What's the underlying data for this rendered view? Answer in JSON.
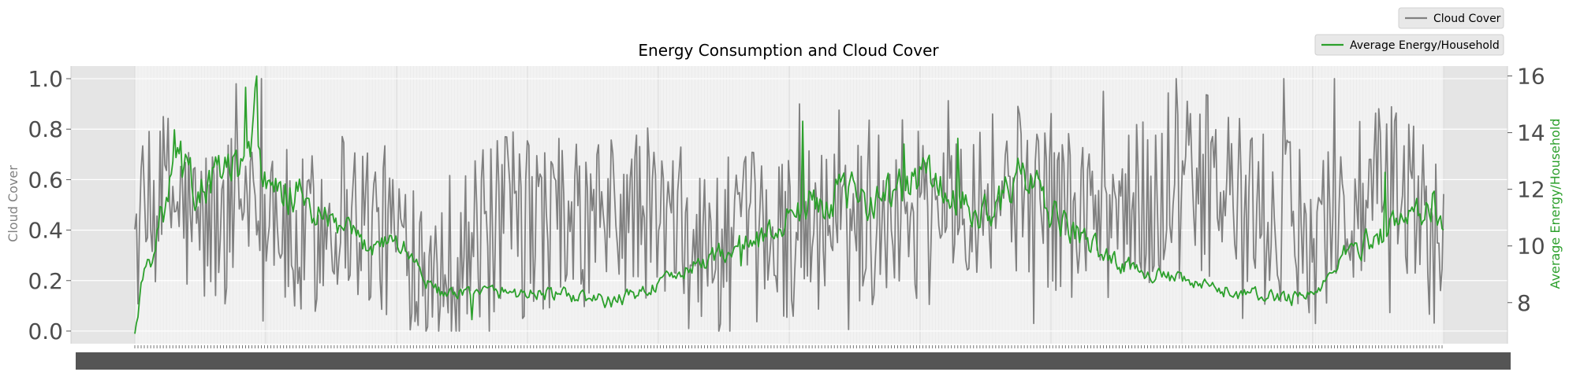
{
  "chart_data": {
    "type": "line",
    "title": "Energy Consumption and Cloud Cover",
    "xlabel": "",
    "y1label": "Cloud Cover",
    "y2label": "Average Energy/Household",
    "y1lim": [
      -0.05,
      1.05
    ],
    "y2lim": [
      6.55,
      16.35
    ],
    "y1ticks": [
      "0.0",
      "0.2",
      "0.4",
      "0.6",
      "0.8",
      "1.0"
    ],
    "y2ticks": [
      "8",
      "10",
      "12",
      "14",
      "16"
    ],
    "n_points": 828,
    "grid": true,
    "legend_position": "top-right",
    "series": [
      {
        "name": "Cloud Cover",
        "axis": "left",
        "color": "#808080",
        "keyframes": [
          [
            0,
            0.36
          ],
          [
            20,
            0.55
          ],
          [
            40,
            0.4
          ],
          [
            60,
            0.45
          ],
          [
            80,
            0.68
          ],
          [
            100,
            0.3
          ],
          [
            130,
            0.5
          ],
          [
            160,
            0.38
          ],
          [
            200,
            0.3
          ],
          [
            240,
            0.45
          ],
          [
            280,
            0.4
          ],
          [
            320,
            0.48
          ],
          [
            360,
            0.32
          ],
          [
            400,
            0.38
          ],
          [
            440,
            0.42
          ],
          [
            480,
            0.5
          ],
          [
            520,
            0.58
          ],
          [
            560,
            0.56
          ],
          [
            600,
            0.46
          ],
          [
            640,
            0.5
          ],
          [
            680,
            0.6
          ],
          [
            720,
            0.4
          ],
          [
            760,
            0.44
          ],
          [
            800,
            0.58
          ],
          [
            827,
            0.32
          ]
        ],
        "spikes_hi": [
          [
            64,
            0.98
          ],
          [
            80,
            1.0
          ],
          [
            420,
            0.9
          ],
          [
            612,
            0.95
          ],
          [
            658,
            1.0
          ],
          [
            726,
            1.0
          ],
          [
            758,
            1.0
          ]
        ],
        "spikes_lo": [
          [
            81,
            0.04
          ],
          [
            175,
            0.07
          ],
          [
            192,
            0.0
          ],
          [
            245,
            0.05
          ],
          [
            568,
            0.03
          ],
          [
            700,
            0.05
          ],
          [
            746,
            0.03
          ]
        ]
      },
      {
        "name": "Average Energy/Household",
        "axis": "right",
        "color": "#2ca02c",
        "keyframes": [
          [
            0,
            6.9
          ],
          [
            3,
            8.6
          ],
          [
            6,
            9.3
          ],
          [
            10,
            9.6
          ],
          [
            14,
            10.8
          ],
          [
            20,
            11.6
          ],
          [
            26,
            13.0
          ],
          [
            32,
            12.5
          ],
          [
            40,
            11.8
          ],
          [
            50,
            12.4
          ],
          [
            60,
            12.8
          ],
          [
            70,
            12.4
          ],
          [
            75,
            15.9
          ],
          [
            80,
            12.0
          ],
          [
            90,
            11.7
          ],
          [
            100,
            11.9
          ],
          [
            115,
            11.0
          ],
          [
            130,
            10.6
          ],
          [
            145,
            10.0
          ],
          [
            160,
            10.3
          ],
          [
            175,
            9.6
          ],
          [
            185,
            8.6
          ],
          [
            200,
            8.2
          ],
          [
            220,
            8.4
          ],
          [
            260,
            8.3
          ],
          [
            280,
            8.2
          ],
          [
            300,
            8.0
          ],
          [
            320,
            8.4
          ],
          [
            340,
            8.9
          ],
          [
            360,
            9.5
          ],
          [
            380,
            10.0
          ],
          [
            400,
            10.4
          ],
          [
            420,
            11.3
          ],
          [
            440,
            11.8
          ],
          [
            460,
            11.7
          ],
          [
            480,
            11.9
          ],
          [
            490,
            12.3
          ],
          [
            500,
            12.6
          ],
          [
            510,
            11.9
          ],
          [
            520,
            11.5
          ],
          [
            530,
            11.0
          ],
          [
            550,
            11.8
          ],
          [
            560,
            12.5
          ],
          [
            580,
            11.0
          ],
          [
            600,
            10.2
          ],
          [
            620,
            9.4
          ],
          [
            650,
            8.9
          ],
          [
            680,
            8.5
          ],
          [
            700,
            8.3
          ],
          [
            720,
            8.2
          ],
          [
            740,
            8.3
          ],
          [
            750,
            8.5
          ],
          [
            760,
            9.6
          ],
          [
            780,
            10.2
          ],
          [
            800,
            10.9
          ],
          [
            820,
            11.6
          ],
          [
            827,
            10.1
          ]
        ],
        "spikes_hi": [
          [
            25,
            14.1
          ],
          [
            70,
            15.6
          ],
          [
            77,
            16.0
          ],
          [
            422,
            14.4
          ],
          [
            486,
            13.6
          ],
          [
            520,
            13.8
          ],
          [
            558,
            13.1
          ],
          [
            790,
            12.6
          ]
        ],
        "spikes_lo": [
          [
            213,
            7.4
          ],
          [
            383,
            9.3
          ],
          [
            731,
            7.9
          ]
        ]
      }
    ]
  }
}
